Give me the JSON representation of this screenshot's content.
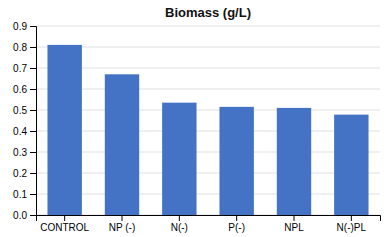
{
  "chart_data": {
    "type": "bar",
    "title": "Biomass (g/L)",
    "categories": [
      "CONTROL",
      "NP (-)",
      "N(-)",
      "P(-)",
      "NPL",
      "N(-)PL"
    ],
    "values": [
      0.81,
      0.67,
      0.535,
      0.515,
      0.51,
      0.478
    ],
    "color": "#4472C4",
    "ylim": [
      0,
      0.9
    ],
    "yticks": [
      {
        "value": 0,
        "label": "0.0"
      },
      0.1,
      0.2,
      0.3,
      0.4,
      0.5,
      0.6,
      0.7,
      0.8,
      0.9
    ],
    "grid": true
  }
}
